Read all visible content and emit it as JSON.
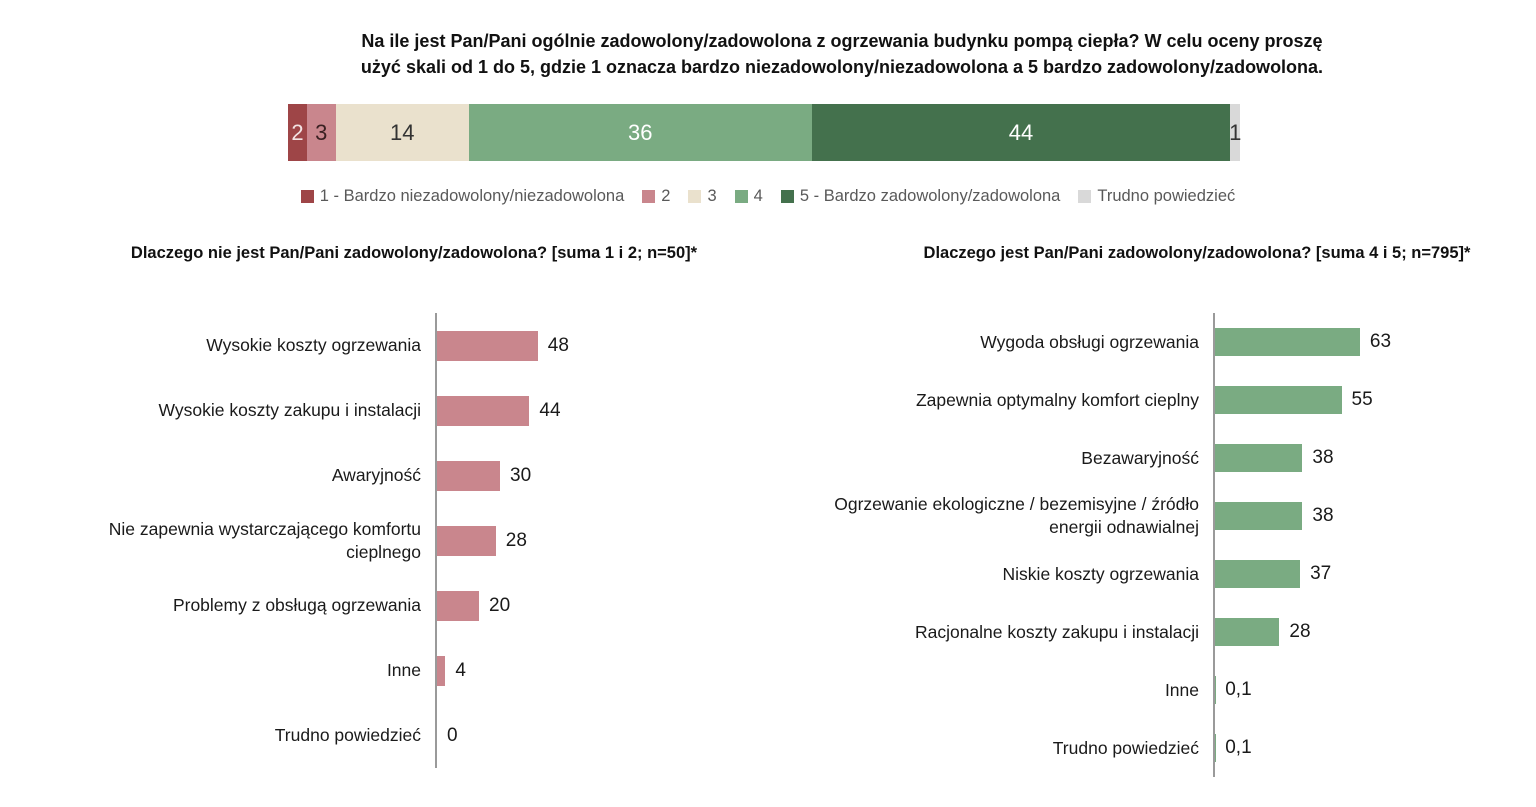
{
  "header": {
    "line1": "Na ile jest Pan/Pani ogólnie zadowolony/zadowolona z ogrzewania budynku pompą ciepła? W celu oceny proszę",
    "line2": "użyć skali od 1 do 5, gdzie 1 oznacza bardzo niezadowolony/niezadowolona a 5 bardzo zadowolony/zadowolona."
  },
  "colors": {
    "score1": "#9e4547",
    "score2": "#c9868d",
    "score3": "#eae1cd",
    "score4": "#7aab82",
    "score5": "#44714d",
    "dont_know": "#d9d9d9",
    "axis": "#9a9a9a",
    "legend_text": "#595959"
  },
  "chart_data": [
    {
      "type": "stacked-bar",
      "title": "Na ile jest Pan/Pani ogólnie zadowolony/zadowolona z ogrzewania budynku pompą ciepła?",
      "orientation": "horizontal",
      "unit": "%",
      "segments": [
        {
          "label": "1 - Bardzo niezadowolony/niezadowolona",
          "value": 2,
          "color": "#9e4547",
          "text_color": "#f3e3e3"
        },
        {
          "label": "2",
          "value": 3,
          "color": "#c9868d",
          "text_color": "#3a2022"
        },
        {
          "label": "3",
          "value": 14,
          "color": "#eae1cd",
          "text_color": "#333333"
        },
        {
          "label": "4",
          "value": 36,
          "color": "#7aab82",
          "text_color": "#ffffff"
        },
        {
          "label": "5 - Bardzo zadowolony/zadowolona",
          "value": 44,
          "color": "#44714d",
          "text_color": "#ffffff"
        },
        {
          "label": "Trudno powiedzieć",
          "value": 1,
          "color": "#d9d9d9",
          "text_color": "#333333"
        }
      ]
    },
    {
      "type": "bar",
      "title": "Dlaczego nie jest Pan/Pani zadowolony/zadowolona?  [suma 1 i 2; n=50]*",
      "orientation": "horizontal",
      "bar_color": "#c9868d",
      "xlim": [
        0,
        70
      ],
      "grid": false,
      "categories": [
        "Wysokie koszty ogrzewania",
        "Wysokie koszty zakupu i instalacji",
        "Awaryjność",
        "Nie zapewnia wystarczającego komfortu cieplnego",
        "Problemy z obsługą ogrzewania",
        "Inne",
        "Trudno powiedzieć"
      ],
      "values": [
        48,
        44,
        30,
        28,
        20,
        4,
        0
      ],
      "value_labels": [
        "48",
        "44",
        "30",
        "28",
        "20",
        "4",
        "0"
      ]
    },
    {
      "type": "bar",
      "title": "Dlaczego jest Pan/Pani zadowolony/zadowolona? [suma 4 i 5; n=795]*",
      "orientation": "horizontal",
      "bar_color": "#7aab82",
      "xlim": [
        0,
        70
      ],
      "grid": false,
      "categories": [
        "Wygoda obsługi ogrzewania",
        "Zapewnia optymalny komfort cieplny",
        "Bezawaryjność",
        "Ogrzewanie ekologiczne / bezemisyjne / źródło energii odnawialnej",
        "Niskie koszty ogrzewania",
        "Racjonalne koszty zakupu i instalacji",
        "Inne",
        "Trudno powiedzieć"
      ],
      "values": [
        63,
        55,
        38,
        38,
        37,
        28,
        0.1,
        0.1
      ],
      "value_labels": [
        "63",
        "55",
        "38",
        "38",
        "37",
        "28",
        "0,1",
        "0,1"
      ]
    }
  ]
}
